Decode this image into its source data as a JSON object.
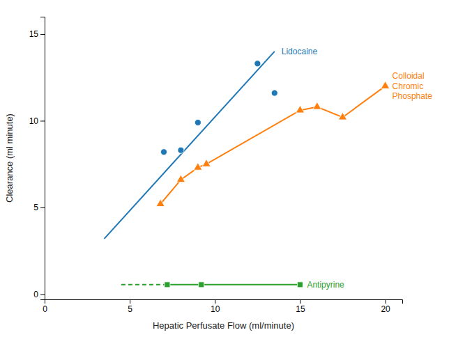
{
  "chart_data": {
    "type": "line",
    "xlabel": "Hepatic Perfusate Flow (ml/minute)",
    "ylabel": "Clearance (ml minute)",
    "xlim": [
      0,
      21
    ],
    "ylim": [
      -0.3,
      16
    ],
    "xticks": [
      0,
      5,
      10,
      15,
      20
    ],
    "yticks": [
      0,
      5,
      10,
      15
    ],
    "grid": false,
    "series": [
      {
        "name": "Lidocaine",
        "marker": "circle",
        "x": [
          7.0,
          8.0,
          9.0,
          12.5,
          13.5
        ],
        "values": [
          8.2,
          8.3,
          9.9,
          13.3,
          11.6
        ],
        "lines": [
          {
            "x": [
              3.5,
              13.5
            ],
            "values": [
              3.2,
              14.0
            ],
            "line_style": "solid"
          }
        ]
      },
      {
        "name": "Colloidal\nChromic\nPhosphate",
        "marker": "triangle",
        "x": [
          6.8,
          8.0,
          9.0,
          9.5,
          15.0,
          16.0,
          17.5,
          20.0
        ],
        "values": [
          5.2,
          6.6,
          7.3,
          7.5,
          10.6,
          10.8,
          10.2,
          12.0
        ],
        "lines": [
          {
            "x": [
              6.8,
              8.0,
              9.0,
              9.5,
              15.0,
              16.0,
              17.5,
              20.0
            ],
            "values": [
              5.2,
              6.6,
              7.3,
              7.5,
              10.6,
              10.8,
              10.2,
              12.0
            ],
            "line_style": "solid"
          }
        ]
      },
      {
        "name": "Antipyrine",
        "marker": "square",
        "x": [
          7.2,
          9.2,
          15.0
        ],
        "values": [
          0.55,
          0.55,
          0.55
        ],
        "lines": [
          {
            "x": [
              4.5,
              7.2
            ],
            "values": [
              0.55,
              0.55
            ],
            "line_style": "dashed"
          },
          {
            "x": [
              7.2,
              15.0
            ],
            "values": [
              0.55,
              0.55
            ],
            "line_style": "solid"
          }
        ]
      }
    ]
  }
}
